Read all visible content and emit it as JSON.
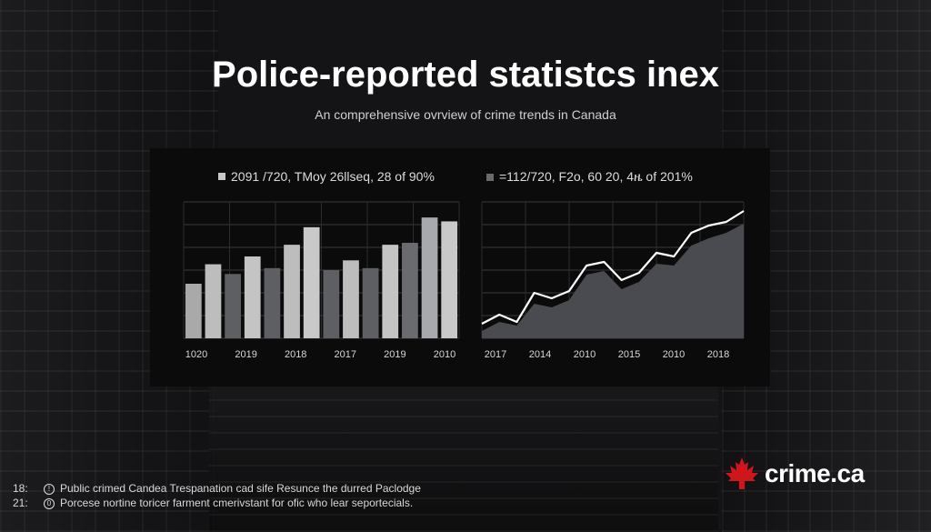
{
  "header": {
    "title": "Police-reported statistcs inex",
    "subtitle": "An comprehensive ovrview of crime trends in Canada"
  },
  "chart_data": [
    {
      "type": "bar",
      "legend_text": "2091 /720, TMoy 26llseq, 28 of 90%",
      "legend_color": "#c8c8c8",
      "tick_labels": [
        "1020",
        "2019",
        "2018",
        "2017",
        "2019",
        "2010"
      ],
      "values": [
        28,
        38,
        33,
        42,
        36,
        48,
        57,
        35,
        40,
        36,
        48,
        49,
        62,
        60
      ],
      "bar_colors": [
        "#a9a9a9",
        "#bdbdbd",
        "#5e5f63",
        "#c4c4c4",
        "#5e5f63",
        "#bdbdbd",
        "#c9c9c9",
        "#5e5f63",
        "#bdbdbd",
        "#5e5f63",
        "#c4c4c4",
        "#6a6b6f",
        "#a8a9ad",
        "#c9c9c9"
      ],
      "ylim": [
        0,
        70
      ],
      "grid": true
    },
    {
      "type": "area",
      "legend_text": "=112/720, F2o, 60 20, 4ዜ of 201%",
      "legend_color": "#6a6b6f",
      "tick_labels": [
        "2017",
        "2014",
        "2010",
        "2015",
        "2010",
        "2018"
      ],
      "line_values": [
        8,
        13,
        9,
        25,
        22,
        26,
        40,
        42,
        32,
        36,
        47,
        45,
        58,
        62,
        64,
        70
      ],
      "area_values": [
        4,
        9,
        7,
        19,
        17,
        21,
        35,
        37,
        27,
        31,
        41,
        40,
        51,
        55,
        58,
        63
      ],
      "line_color": "#ffffff",
      "area_color": "#4a4b50",
      "ylim": [
        0,
        75
      ],
      "grid": true
    }
  ],
  "footer": {
    "lines": [
      {
        "num": "18:",
        "icon": "!",
        "text": "Public crimed Candea Trespanation cad sife Resunce the durred Paclodge"
      },
      {
        "num": "21:",
        "icon": "0",
        "text": "Porcese nortine toricer farment cmerivstant for ofic who lear seportecials."
      }
    ]
  },
  "logo": {
    "text": "crime.ca",
    "leaf_color": "#d0161b"
  }
}
